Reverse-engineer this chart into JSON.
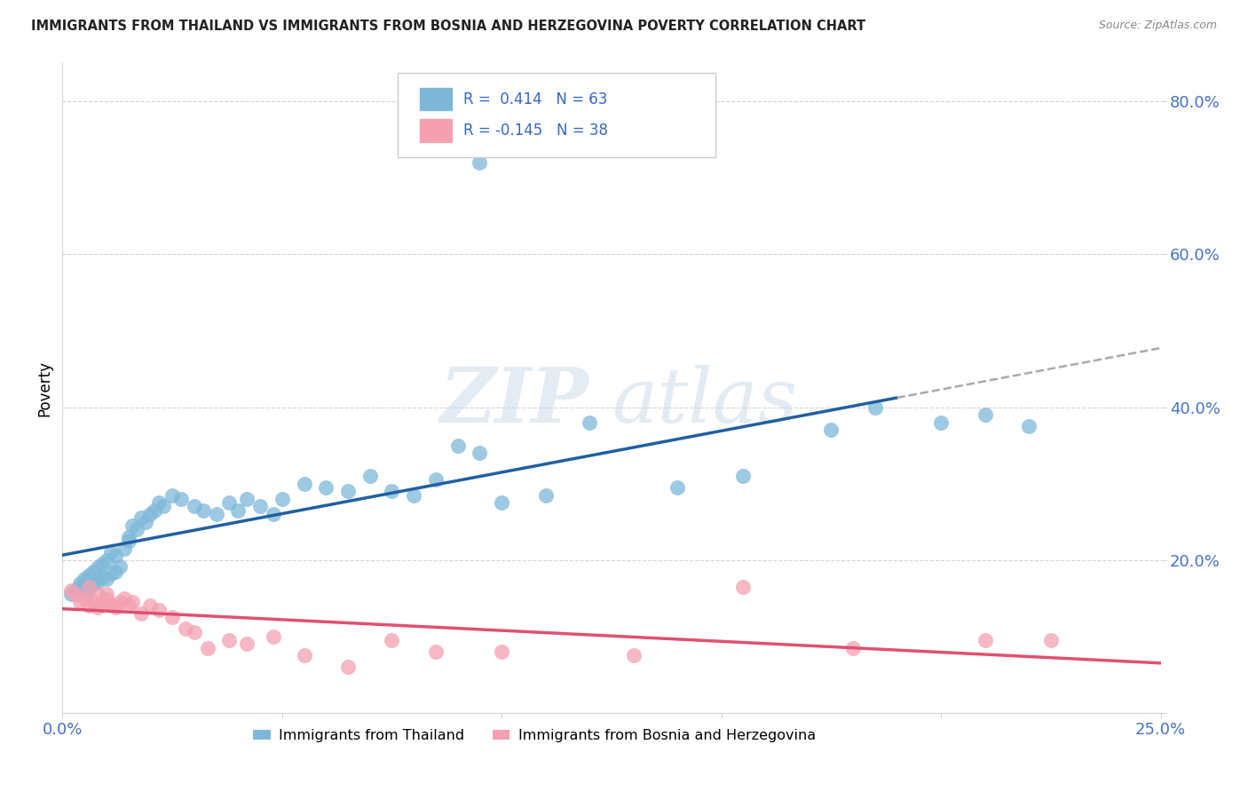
{
  "title": "IMMIGRANTS FROM THAILAND VS IMMIGRANTS FROM BOSNIA AND HERZEGOVINA POVERTY CORRELATION CHART",
  "source": "Source: ZipAtlas.com",
  "ylabel": "Poverty",
  "xlim": [
    0.0,
    0.25
  ],
  "ylim": [
    0.0,
    0.85
  ],
  "xtick_positions": [
    0.0,
    0.05,
    0.1,
    0.15,
    0.2,
    0.25
  ],
  "xticklabels": [
    "0.0%",
    "",
    "",
    "",
    "",
    "25.0%"
  ],
  "ytick_positions": [
    0.0,
    0.2,
    0.4,
    0.6,
    0.8
  ],
  "yticklabels": [
    "",
    "20.0%",
    "40.0%",
    "60.0%",
    "80.0%"
  ],
  "r_thailand": 0.414,
  "n_thailand": 63,
  "r_bosnia": -0.145,
  "n_bosnia": 38,
  "color_thailand": "#7eb8d9",
  "color_bosnia": "#f4a0b0",
  "color_thailand_line": "#2060a0",
  "color_bosnia_line": "#e05070",
  "color_dashed": "#aaaaaa",
  "background_color": "#ffffff",
  "thailand_x": [
    0.002,
    0.003,
    0.004,
    0.004,
    0.005,
    0.005,
    0.006,
    0.006,
    0.007,
    0.007,
    0.008,
    0.008,
    0.009,
    0.009,
    0.01,
    0.01,
    0.011,
    0.011,
    0.012,
    0.012,
    0.013,
    0.014,
    0.015,
    0.015,
    0.016,
    0.017,
    0.018,
    0.019,
    0.02,
    0.021,
    0.022,
    0.023,
    0.025,
    0.027,
    0.03,
    0.032,
    0.035,
    0.038,
    0.04,
    0.042,
    0.045,
    0.048,
    0.05,
    0.055,
    0.06,
    0.065,
    0.07,
    0.075,
    0.08,
    0.085,
    0.09,
    0.095,
    0.1,
    0.11,
    0.12,
    0.14,
    0.155,
    0.175,
    0.185,
    0.2,
    0.21,
    0.22,
    0.095
  ],
  "thailand_y": [
    0.155,
    0.16,
    0.165,
    0.17,
    0.158,
    0.175,
    0.162,
    0.18,
    0.168,
    0.185,
    0.172,
    0.19,
    0.178,
    0.195,
    0.175,
    0.2,
    0.182,
    0.21,
    0.185,
    0.205,
    0.192,
    0.215,
    0.225,
    0.23,
    0.245,
    0.24,
    0.255,
    0.25,
    0.26,
    0.265,
    0.275,
    0.27,
    0.285,
    0.28,
    0.27,
    0.265,
    0.26,
    0.275,
    0.265,
    0.28,
    0.27,
    0.26,
    0.28,
    0.3,
    0.295,
    0.29,
    0.31,
    0.29,
    0.285,
    0.305,
    0.35,
    0.34,
    0.275,
    0.285,
    0.38,
    0.295,
    0.31,
    0.37,
    0.4,
    0.38,
    0.39,
    0.375,
    0.72
  ],
  "bosnia_x": [
    0.002,
    0.003,
    0.004,
    0.005,
    0.006,
    0.006,
    0.007,
    0.008,
    0.008,
    0.009,
    0.01,
    0.01,
    0.011,
    0.012,
    0.013,
    0.014,
    0.015,
    0.016,
    0.018,
    0.02,
    0.022,
    0.025,
    0.028,
    0.03,
    0.033,
    0.038,
    0.042,
    0.048,
    0.055,
    0.065,
    0.075,
    0.085,
    0.1,
    0.13,
    0.155,
    0.18,
    0.21,
    0.225
  ],
  "bosnia_y": [
    0.16,
    0.155,
    0.145,
    0.15,
    0.14,
    0.165,
    0.145,
    0.138,
    0.155,
    0.142,
    0.148,
    0.155,
    0.142,
    0.138,
    0.145,
    0.15,
    0.14,
    0.145,
    0.13,
    0.14,
    0.135,
    0.125,
    0.11,
    0.105,
    0.085,
    0.095,
    0.09,
    0.1,
    0.075,
    0.06,
    0.095,
    0.08,
    0.08,
    0.075,
    0.165,
    0.085,
    0.095,
    0.095
  ]
}
